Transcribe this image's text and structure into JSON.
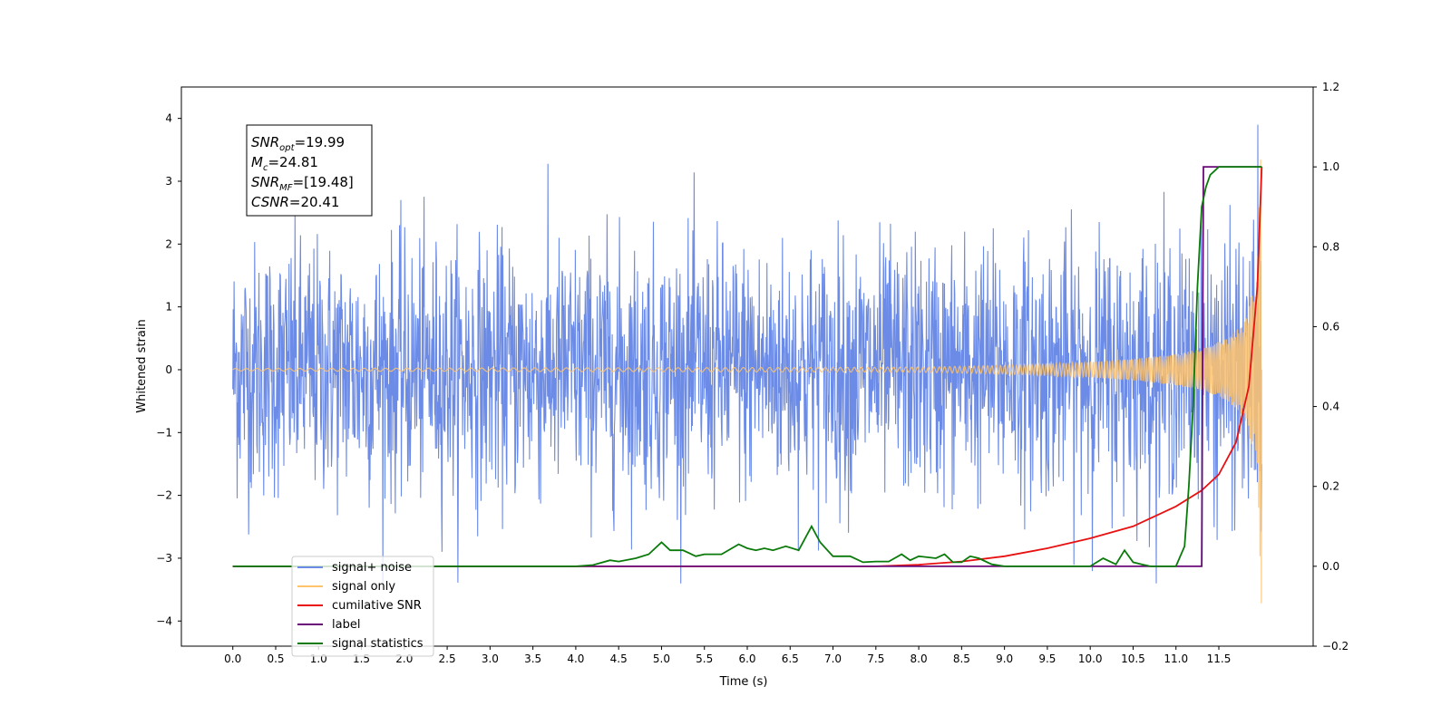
{
  "chart_data": {
    "type": "line",
    "xlabel": "Time (s)",
    "ylabel": "Whitened strain",
    "xlim": [
      -0.6,
      12.6
    ],
    "ylim": [
      -4.4,
      4.5
    ],
    "y2lim": [
      -0.2,
      1.2
    ],
    "x_ticks": [
      0.0,
      0.5,
      1.0,
      1.5,
      2.0,
      2.5,
      3.0,
      3.5,
      4.0,
      4.5,
      5.0,
      5.5,
      6.0,
      6.5,
      7.0,
      7.5,
      8.0,
      8.5,
      9.0,
      9.5,
      10.0,
      10.5,
      11.0,
      11.5
    ],
    "x_tick_labels": [
      "0.0",
      "0.5",
      "1.0",
      "1.5",
      "2.0",
      "2.5",
      "3.0",
      "3.5",
      "4.0",
      "4.5",
      "5.0",
      "5.5",
      "6.0",
      "6.5",
      "7.0",
      "7.5",
      "8.0",
      "8.5",
      "9.0",
      "9.5",
      "10.0",
      "10.5",
      "11.0",
      "11.5"
    ],
    "y_ticks": [
      -4,
      -3,
      -2,
      -1,
      0,
      1,
      2,
      3,
      4
    ],
    "y_tick_labels": [
      "−4",
      "−3",
      "−2",
      "−1",
      "0",
      "1",
      "2",
      "3",
      "4"
    ],
    "y2_ticks": [
      -0.2,
      0.0,
      0.2,
      0.4,
      0.6,
      0.8,
      1.0,
      1.2
    ],
    "y2_tick_labels": [
      "−0.2",
      "0.0",
      "0.2",
      "0.4",
      "0.6",
      "0.8",
      "1.0",
      "1.2"
    ],
    "grid": false,
    "legend_position": "lower-left",
    "annotation": {
      "lines": [
        {
          "main": "SNR",
          "sub": "opt",
          "value": "=19.99"
        },
        {
          "main": "M",
          "sub": "c",
          "value": "=24.81"
        },
        {
          "main": "SNR",
          "sub": "MF",
          "value": "=[19.48]"
        },
        {
          "main": "CSNR",
          "sub": "",
          "value": "=20.41"
        }
      ]
    },
    "series": [
      {
        "name": "signal+ noise",
        "axis": "left",
        "color": "#6b8be6",
        "description_stats": {
          "t_start": 0.0,
          "t_end": 12.0,
          "std": 1.0,
          "max": 4.13,
          "min": -3.55
        }
      },
      {
        "name": "signal only",
        "axis": "left",
        "color": "#ffc36b",
        "envelope": {
          "t": [
            0.0,
            8.0,
            9.0,
            10.0,
            10.5,
            11.0,
            11.3,
            11.6,
            11.8,
            11.95,
            12.0
          ],
          "amp": [
            0.02,
            0.04,
            0.07,
            0.12,
            0.17,
            0.25,
            0.33,
            0.5,
            0.75,
            1.6,
            3.9
          ]
        }
      },
      {
        "name": "cumilative SNR",
        "axis": "right",
        "color": "#e81010",
        "x": [
          0.0,
          7.5,
          8.0,
          8.5,
          9.0,
          9.5,
          10.0,
          10.5,
          11.0,
          11.3,
          11.5,
          11.7,
          11.85,
          11.95,
          12.0
        ],
        "y": [
          0.0,
          0.0,
          0.004,
          0.012,
          0.025,
          0.045,
          0.07,
          0.1,
          0.15,
          0.19,
          0.23,
          0.31,
          0.45,
          0.7,
          1.0
        ]
      },
      {
        "name": "label",
        "axis": "right",
        "color": "#6a0a78",
        "x": [
          0.0,
          11.3,
          11.32,
          12.0
        ],
        "y": [
          0.0,
          0.0,
          1.0,
          1.0
        ]
      },
      {
        "name": "signal statistics",
        "axis": "right",
        "color": "#0a7a0a",
        "x": [
          0.0,
          4.0,
          4.2,
          4.4,
          4.5,
          4.7,
          4.85,
          5.0,
          5.1,
          5.25,
          5.4,
          5.5,
          5.7,
          5.9,
          6.0,
          6.1,
          6.2,
          6.3,
          6.45,
          6.6,
          6.75,
          6.85,
          7.0,
          7.2,
          7.35,
          7.5,
          7.65,
          7.8,
          7.9,
          8.0,
          8.2,
          8.3,
          8.4,
          8.5,
          8.6,
          8.7,
          8.85,
          9.0,
          9.2,
          9.5,
          9.7,
          10.0,
          10.15,
          10.3,
          10.4,
          10.5,
          10.6,
          10.7,
          11.0,
          11.1,
          11.15,
          11.2,
          11.25,
          11.3,
          11.35,
          11.4,
          11.45,
          11.5,
          11.6,
          12.0
        ],
        "y": [
          0.0,
          0.0,
          0.003,
          0.015,
          0.012,
          0.02,
          0.03,
          0.06,
          0.04,
          0.04,
          0.025,
          0.03,
          0.03,
          0.055,
          0.045,
          0.04,
          0.045,
          0.04,
          0.05,
          0.04,
          0.1,
          0.06,
          0.025,
          0.025,
          0.01,
          0.012,
          0.012,
          0.03,
          0.015,
          0.025,
          0.02,
          0.03,
          0.01,
          0.01,
          0.025,
          0.02,
          0.005,
          0.0,
          0.0,
          0.0,
          0.0,
          0.0,
          0.02,
          0.005,
          0.04,
          0.01,
          0.005,
          0.0,
          0.0,
          0.05,
          0.2,
          0.4,
          0.7,
          0.9,
          0.95,
          0.98,
          0.99,
          1.0,
          1.0,
          1.0
        ]
      }
    ]
  },
  "legend": {
    "items": [
      {
        "label": "signal+ noise",
        "color": "#6b8be6"
      },
      {
        "label": "signal only",
        "color": "#ffc36b"
      },
      {
        "label": "cumilative SNR",
        "color": "#e81010"
      },
      {
        "label": "label",
        "color": "#6a0a78"
      },
      {
        "label": "signal statistics",
        "color": "#0a7a0a"
      }
    ]
  }
}
